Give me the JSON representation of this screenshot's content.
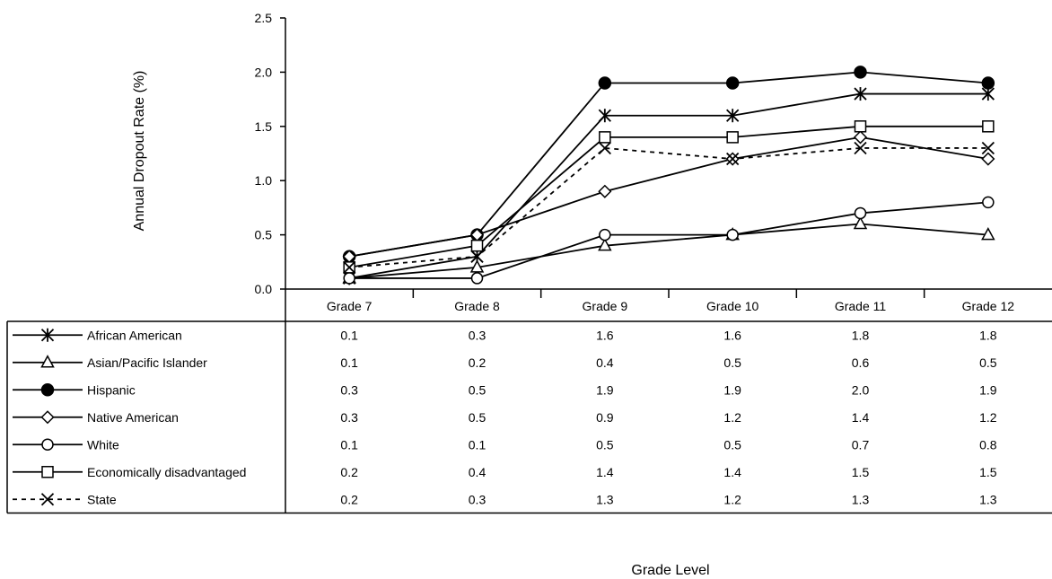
{
  "chart_data": {
    "type": "line",
    "title": "",
    "xlabel": "Grade Level",
    "ylabel": "Annual Dropout Rate (%)",
    "ylim": [
      0,
      2.5
    ],
    "y_ticks": [
      "0.0",
      "0.5",
      "1.0",
      "1.5",
      "2.0",
      "2.5"
    ],
    "grid": false,
    "legend": "data-table-below",
    "categories": [
      "Grade 7",
      "Grade 8",
      "Grade 9",
      "Grade 10",
      "Grade 11",
      "Grade 12"
    ],
    "series": [
      {
        "name": "African American",
        "marker": "asterisk",
        "dashed": false,
        "values": [
          0.1,
          0.3,
          1.6,
          1.6,
          1.8,
          1.8
        ]
      },
      {
        "name": "Asian/Pacific Islander",
        "marker": "triangle",
        "dashed": false,
        "values": [
          0.1,
          0.2,
          0.4,
          0.5,
          0.6,
          0.5
        ]
      },
      {
        "name": "Hispanic",
        "marker": "filled-circle",
        "dashed": false,
        "values": [
          0.3,
          0.5,
          1.9,
          1.9,
          2.0,
          1.9
        ]
      },
      {
        "name": "Native American",
        "marker": "diamond",
        "dashed": false,
        "values": [
          0.3,
          0.5,
          0.9,
          1.2,
          1.4,
          1.2
        ]
      },
      {
        "name": "White",
        "marker": "open-circle",
        "dashed": false,
        "values": [
          0.1,
          0.1,
          0.5,
          0.5,
          0.7,
          0.8
        ]
      },
      {
        "name": "Economically disadvantaged",
        "marker": "square",
        "dashed": false,
        "values": [
          0.2,
          0.4,
          1.4,
          1.4,
          1.5,
          1.5
        ]
      },
      {
        "name": "State",
        "marker": "x",
        "dashed": true,
        "values": [
          0.2,
          0.3,
          1.3,
          1.2,
          1.3,
          1.3
        ]
      }
    ]
  }
}
